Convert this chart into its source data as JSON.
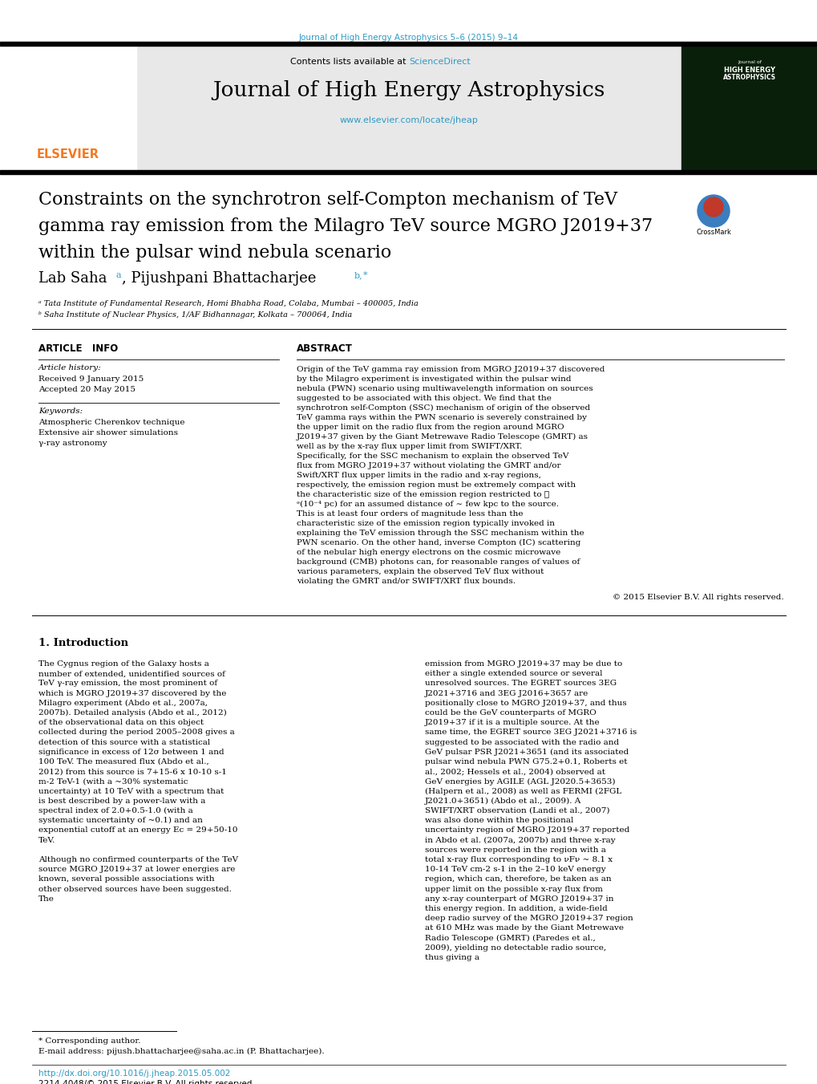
{
  "journal_ref": "Journal of High Energy Astrophysics 5–6 (2015) 9–14",
  "journal_name": "Journal of High Energy Astrophysics",
  "journal_url": "www.elsevier.com/locate/jheap",
  "contents_text": "Contents lists available at ",
  "sciencedirect_text": "ScienceDirect",
  "title_line1": "Constraints on the synchrotron self-Compton mechanism of TeV",
  "title_line2": "gamma ray emission from the Milagro TeV source MGRO J2019+37",
  "title_line3": "within the pulsar wind nebula scenario",
  "author_name1": "Lab Saha",
  "author_sup1": "a",
  "author_name2": "Pijushpani Bhattacharjee",
  "author_sup2": "b,*",
  "affil_a": "ᵃ Tata Institute of Fundamental Research, Homi Bhabha Road, Colaba, Mumbai – 400005, India",
  "affil_b": "ᵇ Saha Institute of Nuclear Physics, 1/AF Bidhannagar, Kolkata – 700064, India",
  "article_info_title": "ARTICLE   INFO",
  "article_history_title": "Article history:",
  "received": "Received 9 January 2015",
  "accepted": "Accepted 20 May 2015",
  "keywords_title": "Keywords:",
  "keyword1": "Atmospheric Cherenkov technique",
  "keyword2": "Extensive air shower simulations",
  "keyword3": "γ-ray astronomy",
  "abstract_title": "ABSTRACT",
  "abstract_text": "Origin of the TeV gamma ray emission from MGRO J2019+37 discovered by the Milagro experiment is investigated within the pulsar wind nebula (PWN) scenario using multiwavelength information on sources suggested to be associated with this object. We find that the synchrotron self-Compton (SSC) mechanism of origin of the observed TeV gamma rays within the PWN scenario is severely constrained by the upper limit on the radio flux from the region around MGRO J2019+37 given by the Giant Metrewave Radio Telescope (GMRT) as well as by the x-ray flux upper limit from SWIFT/XRT. Specifically, for the SSC mechanism to explain the observed TeV flux from MGRO J2019+37 without violating the GMRT and/or Swift/XRT flux upper limits in the radio and x-ray regions, respectively, the emission region must be extremely compact with the characteristic size of the emission region restricted to ≲ ᵊ(10⁻⁴ pc) for an assumed distance of ∼ few kpc to the source. This is at least four orders of magnitude less than the characteristic size of the emission region typically invoked in explaining the TeV emission through the SSC mechanism within the PWN scenario. On the other hand, inverse Compton (IC) scattering of the nebular high energy electrons on the cosmic microwave background (CMB) photons can, for reasonable ranges of values of various parameters, explain the observed TeV flux without violating the GMRT and/or SWIFT/XRT flux bounds.",
  "copyright": "© 2015 Elsevier B.V. All rights reserved.",
  "section1_title": "1. Introduction",
  "intro_col1_text": "    The Cygnus region of the Galaxy hosts a number of extended, unidentified sources of TeV γ-ray emission, the most prominent of which is MGRO J2019+37 discovered by the Milagro experiment (Abdo et al., 2007a, 2007b). Detailed analysis (Abdo et al., 2012) of the observational data on this object collected during the period 2005–2008 gives a detection of this source with a statistical significance in excess of 12σ between 1 and 100 TeV. The measured flux (Abdo et al., 2012) from this source is 7+15-6 x 10-10 s-1 m-2 TeV-1 (with a ~30% systematic uncertainty) at 10 TeV with a spectrum that is best described by a power-law with a spectral index of 2.0+0.5-1.0 (with a systematic uncertainty of ~0.1) and an exponential cutoff at an energy Ec = 29+50-10 TeV.",
  "intro_col1_para2": "    Although no confirmed counterparts of the TeV source MGRO J2019+37 at lower energies are known, several possible associations with other observed sources have been suggested. The",
  "intro_col2_text": "emission from MGRO J2019+37 may be due to either a single extended source or several unresolved sources. The EGRET sources 3EG J2021+3716 and 3EG J2016+3657 are positionally close to MGRO J2019+37, and thus could be the GeV counterparts of MGRO J2019+37 if it is a multiple source. At the same time, the EGRET source 3EG J2021+3716 is suggested to be associated with the radio and GeV pulsar PSR J2021+3651 (and its associated pulsar wind nebula PWN G75.2+0.1, Roberts et al., 2002; Hessels et al., 2004) observed at GeV energies by AGILE (AGL J2020.5+3653) (Halpern et al., 2008) as well as FERMI (2FGL J2021.0+3651) (Abdo et al., 2009). A SWIFT/XRT observation (Landi et al., 2007) was also done within the positional uncertainty region of MGRO J2019+37 reported in Abdo et al. (2007a, 2007b) and three x-ray sources were reported in the region with a total x-ray flux corresponding to νFν ~ 8.1 x 10-14 TeV cm-2 s-1 in the 2–10 keV energy region, which can, therefore, be taken as an upper limit on the possible x-ray flux from any x-ray counterpart of MGRO J2019+37 in this energy region. In addition, a wide-field deep radio survey of the MGRO J2019+37 region at 610 MHz was made by the Giant Metrewave Radio Telescope (GMRT) (Paredes et al., 2009), yielding no detectable radio source, thus giving a",
  "footer_note": "* Corresponding author.",
  "footer_email": "E-mail address: pijush.bhattacharjee@saha.ac.in (P. Bhattacharjee).",
  "footer_doi": "http://dx.doi.org/10.1016/j.jheap.2015.05.002",
  "footer_issn": "2214-4048/© 2015 Elsevier B.V. All rights reserved.",
  "bg_color": "#ffffff",
  "gray_header_color": "#e8e8e8",
  "journal_color": "#2E9AC4",
  "elsevier_color": "#F47920",
  "link_color": "#2E9AC4",
  "text_color": "#000000",
  "separator_color": "#000000",
  "crossmark_red": "#c0392b",
  "crossmark_blue": "#2980b9"
}
